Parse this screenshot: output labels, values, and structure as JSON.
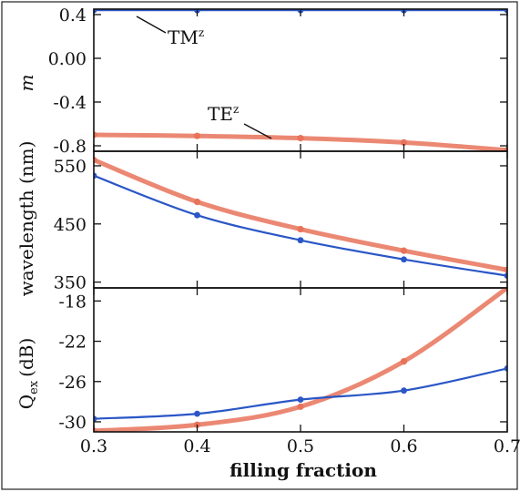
{
  "chart_data": [
    {
      "type": "line",
      "panel": "top",
      "ylabel": "m",
      "x": [
        0.3,
        0.4,
        0.5,
        0.6,
        0.7
      ],
      "ylim": [
        -0.85,
        0.45
      ],
      "yticks": [
        0.4,
        0.0,
        -0.4,
        -0.8
      ],
      "ytick_labels": [
        "0.4",
        "0.00",
        "-0.4",
        "-0.8"
      ],
      "series": [
        {
          "name": "TMz",
          "color": "#2a56c6",
          "values": [
            0.44,
            0.44,
            0.44,
            0.44,
            0.44
          ]
        },
        {
          "name": "TEz",
          "color": "#e8735a",
          "values": [
            -0.7,
            -0.71,
            -0.73,
            -0.77,
            -0.84
          ]
        }
      ],
      "annotations": [
        {
          "text": "TM",
          "sup": "z",
          "series": "TMz"
        },
        {
          "text": "TE",
          "sup": "z",
          "series": "TEz"
        }
      ]
    },
    {
      "type": "line",
      "panel": "middle",
      "ylabel": "wavelength (nm)",
      "x": [
        0.3,
        0.4,
        0.5,
        0.6,
        0.7
      ],
      "ylim": [
        340,
        575
      ],
      "yticks": [
        550,
        450,
        350
      ],
      "ytick_labels": [
        "550",
        "450",
        "350"
      ],
      "series": [
        {
          "color": "#e8735a",
          "values": [
            560,
            488,
            441,
            404,
            371
          ]
        },
        {
          "color": "#2a56c6",
          "values": [
            533,
            465,
            422,
            389,
            361
          ]
        }
      ]
    },
    {
      "type": "line",
      "panel": "bottom",
      "ylabel": "Q",
      "ylabel_sub": "ex",
      "ylabel_unit": "(dB)",
      "x": [
        0.3,
        0.4,
        0.5,
        0.6,
        0.7
      ],
      "xlabel": "filling fraction",
      "xtick_labels": [
        "0.3",
        "0.4",
        "0.5",
        "0.6",
        "0.7"
      ],
      "ylim": [
        -31,
        -16.7
      ],
      "yticks": [
        -18,
        -22,
        -26,
        -30
      ],
      "ytick_labels": [
        "-18",
        "-22",
        "-26",
        "-30"
      ],
      "series": [
        {
          "color": "#e8735a",
          "values": [
            -30.9,
            -30.3,
            -28.5,
            -24.0,
            -16.7
          ]
        },
        {
          "color": "#2a56c6",
          "values": [
            -29.7,
            -29.2,
            -27.8,
            -26.9,
            -24.7
          ]
        }
      ]
    }
  ]
}
